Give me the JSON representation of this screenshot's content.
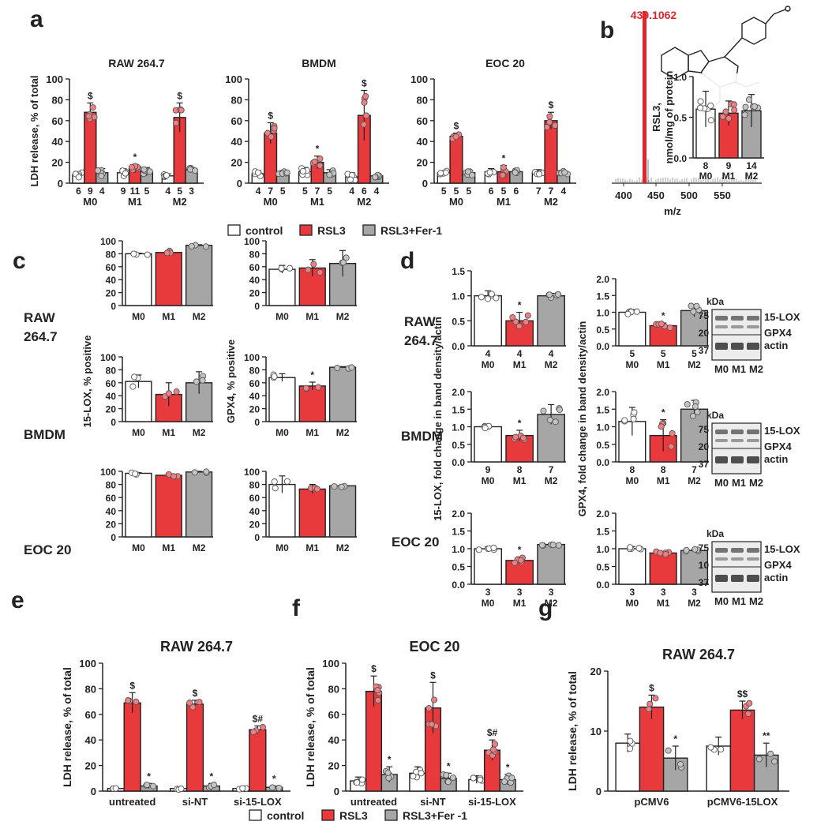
{
  "colors": {
    "control": "#ffffff",
    "rsl3": "#e8393d",
    "fer1": "#a6a6a6",
    "dot_rsl3": "#ef7f82",
    "peak": "#e0262b"
  },
  "panel_letters": {
    "a": "a",
    "b": "b",
    "c": "c",
    "d": "d",
    "e": "e",
    "f": "f",
    "g": "g"
  },
  "legend_top": {
    "control": "control",
    "rsl3": "RSL3",
    "fer1": "RSL3+Fer-1"
  },
  "legend_bottom": {
    "control": "control",
    "rsl3": "RSL3",
    "fer1": "RSL3+Fer -1"
  },
  "row_labels": {
    "raw": "RAW",
    "raw_num": "264.7",
    "bmdm": "BMDM",
    "eoc": "EOC 20"
  },
  "kda": "kDa",
  "blot_labels": {
    "lox": "15-LOX",
    "gpx": "GPX4",
    "actin": "actin"
  },
  "blot_lanes": [
    "M0",
    "M1",
    "M2"
  ],
  "blot_markers": [
    [
      "75",
      "20",
      "37"
    ],
    [
      "75",
      "20",
      "37"
    ],
    [
      "75",
      "10",
      "37"
    ]
  ],
  "chart_data": [
    {
      "id": "a1",
      "type": "bar",
      "title": "RAW 264.7",
      "ylabel": "LDH release, % of total",
      "ylim": [
        0,
        100
      ],
      "yticks": [
        "0",
        "20",
        "40",
        "60",
        "80",
        "100"
      ],
      "groups": [
        "M0",
        "M1",
        "M2"
      ],
      "series": [
        "control",
        "RSL3",
        "RSL3+Fer-1"
      ],
      "values": [
        [
          8,
          68,
          10
        ],
        [
          10,
          14,
          11
        ],
        [
          7,
          63,
          13
        ]
      ],
      "errors": [
        [
          3,
          9,
          4
        ],
        [
          4,
          4,
          4
        ],
        [
          2,
          14,
          2
        ]
      ],
      "ns": [
        [
          "6",
          "9",
          "4"
        ],
        [
          "9",
          "11",
          "5"
        ],
        [
          "4",
          "5",
          "3"
        ]
      ],
      "marks": [
        [
          "",
          "$",
          ""
        ],
        [
          "",
          "*",
          ""
        ],
        [
          "",
          "$",
          ""
        ]
      ]
    },
    {
      "id": "a2",
      "type": "bar",
      "title": "BMDM",
      "ylim": [
        0,
        100
      ],
      "yticks": [
        "0",
        "20",
        "40",
        "60",
        "80",
        "100"
      ],
      "groups": [
        "M0",
        "M1",
        "M2"
      ],
      "values": [
        [
          9,
          48,
          9
        ],
        [
          11,
          20,
          10
        ],
        [
          6,
          65,
          7
        ]
      ],
      "errors": [
        [
          3,
          10,
          3
        ],
        [
          4,
          6,
          3
        ],
        [
          4,
          24,
          1
        ]
      ],
      "ns": [
        [
          "4",
          "7",
          "5"
        ],
        [
          "5",
          "7",
          "5"
        ],
        [
          "4",
          "6",
          "4"
        ]
      ],
      "marks": [
        [
          "",
          "$",
          ""
        ],
        [
          "",
          "*",
          ""
        ],
        [
          "",
          "$",
          ""
        ]
      ]
    },
    {
      "id": "a3",
      "type": "bar",
      "title": "EOC 20",
      "ylim": [
        0,
        100
      ],
      "yticks": [
        "0",
        "20",
        "40",
        "60",
        "80",
        "100"
      ],
      "groups": [
        "M0",
        "M1",
        "M2"
      ],
      "values": [
        [
          10,
          45,
          10
        ],
        [
          11,
          11,
          11
        ],
        [
          10,
          60,
          10
        ]
      ],
      "errors": [
        [
          2,
          3,
          3
        ],
        [
          3,
          6,
          3
        ],
        [
          3,
          8,
          2
        ]
      ],
      "ns": [
        [
          "5",
          "5",
          "5"
        ],
        [
          "6",
          "5",
          "6"
        ],
        [
          "7",
          "7",
          "4"
        ]
      ],
      "marks": [
        [
          "",
          "$",
          ""
        ],
        [
          "",
          "*",
          ""
        ],
        [
          "",
          "$",
          ""
        ]
      ]
    },
    {
      "id": "b",
      "type": "bar",
      "title": "RSL3, nmol/mg of protein",
      "xlabel": "m/z",
      "peak_label": "439.1062",
      "xticks": [
        "400",
        "450",
        "500",
        "550"
      ],
      "ylim": [
        0,
        1.0
      ],
      "yticks": [
        "0.0",
        "0.5",
        "1.0"
      ],
      "categories": [
        "M0",
        "M1",
        "M2"
      ],
      "values": [
        0.6,
        0.55,
        0.58
      ],
      "errors": [
        0.22,
        0.15,
        0.2
      ],
      "ns": [
        "8",
        "9",
        "14"
      ]
    },
    {
      "id": "c1",
      "type": "bar",
      "ylabel": "15-LOX, % positive",
      "ylim": [
        0,
        100
      ],
      "yticks": [
        "0",
        "20",
        "40",
        "60",
        "80",
        "100"
      ],
      "panels": [
        {
          "row": "RAW 264.7",
          "categories": [
            "M0",
            "M1",
            "M2"
          ],
          "values": [
            80,
            82,
            93
          ],
          "errors": [
            1,
            3,
            1
          ],
          "marks": [
            "",
            "",
            ""
          ]
        },
        {
          "row": "BMDM",
          "categories": [
            "M0",
            "M1",
            "M2"
          ],
          "values": [
            62,
            42,
            60
          ],
          "errors": [
            10,
            18,
            17
          ],
          "marks": [
            "",
            "",
            ""
          ]
        },
        {
          "row": "EOC 20",
          "categories": [
            "M0",
            "M1",
            "M2"
          ],
          "values": [
            97,
            94,
            99
          ],
          "errors": [
            1,
            3,
            1
          ],
          "marks": [
            "",
            "",
            ""
          ]
        }
      ]
    },
    {
      "id": "c2",
      "type": "bar",
      "ylabel": "GPX4, % positive",
      "ylim": [
        0,
        100
      ],
      "yticks": [
        "0",
        "20",
        "40",
        "60",
        "80",
        "100"
      ],
      "panels": [
        {
          "row": "RAW 264.7",
          "categories": [
            "M0",
            "M1",
            "M2"
          ],
          "values": [
            56,
            58,
            65
          ],
          "errors": [
            6,
            13,
            20
          ],
          "marks": [
            "",
            "",
            ""
          ]
        },
        {
          "row": "BMDM",
          "categories": [
            "M0",
            "M1",
            "M2"
          ],
          "values": [
            68,
            55,
            84
          ],
          "errors": [
            6,
            6,
            1
          ],
          "marks": [
            "",
            "*",
            ""
          ]
        },
        {
          "row": "EOC 20",
          "categories": [
            "M0",
            "M1",
            "M2"
          ],
          "values": [
            80,
            73,
            78
          ],
          "errors": [
            13,
            7,
            2
          ],
          "marks": [
            "",
            "",
            ""
          ]
        }
      ]
    },
    {
      "id": "d1",
      "type": "bar",
      "ylabel": "15-LOX, fold change in band density/actin",
      "panels": [
        {
          "row": "RAW 264.7",
          "ylim": [
            0,
            1.5
          ],
          "yticks": [
            "0.0",
            "0.5",
            "1.0",
            "1.5"
          ],
          "categories": [
            "M0",
            "M1",
            "M2"
          ],
          "values": [
            1.0,
            0.5,
            1.0
          ],
          "errors": [
            0.1,
            0.17,
            0.05
          ],
          "ns": [
            "4",
            "4",
            "4"
          ],
          "marks": [
            "",
            "*",
            ""
          ]
        },
        {
          "row": "BMDM",
          "ylim": [
            0,
            2.0
          ],
          "yticks": [
            "0.0",
            "0.5",
            "1.0",
            "1.5",
            "2.0"
          ],
          "categories": [
            "M0",
            "M1",
            "M2"
          ],
          "values": [
            1.0,
            0.75,
            1.35
          ],
          "errors": [
            0.07,
            0.15,
            0.28
          ],
          "ns": [
            "9",
            "8",
            "7"
          ],
          "marks": [
            "",
            "*",
            ""
          ]
        },
        {
          "row": "EOC 20",
          "ylim": [
            0,
            2.0
          ],
          "yticks": [
            "0.0",
            "0.5",
            "1.0",
            "1.5",
            "2.0"
          ],
          "categories": [
            "M0",
            "M1",
            "M2"
          ],
          "values": [
            1.0,
            0.67,
            1.12
          ],
          "errors": [
            0.05,
            0.1,
            0.03
          ],
          "ns": [
            "3",
            "3",
            "3"
          ],
          "marks": [
            "",
            "*",
            ""
          ]
        }
      ]
    },
    {
      "id": "d2",
      "type": "bar",
      "ylabel": "GPX4, fold change in band density/actin",
      "panels": [
        {
          "row": "RAW 264.7",
          "ylim": [
            0,
            2.0
          ],
          "yticks": [
            "0.0",
            "0.5",
            "1.0",
            "1.5",
            "2.0"
          ],
          "categories": [
            "M0",
            "M1",
            "M2"
          ],
          "values": [
            1.0,
            0.6,
            1.05
          ],
          "errors": [
            0.08,
            0.08,
            0.18
          ],
          "ns": [
            "5",
            "5",
            "5"
          ],
          "marks": [
            "",
            "*",
            ""
          ]
        },
        {
          "row": "BMDM",
          "ylim": [
            0,
            2.0
          ],
          "yticks": [
            "0.0",
            "0.5",
            "1.0",
            "1.5",
            "2.0"
          ],
          "categories": [
            "M0",
            "M1",
            "M2"
          ],
          "values": [
            1.15,
            0.75,
            1.5
          ],
          "errors": [
            0.4,
            0.45,
            0.25
          ],
          "ns": [
            "8",
            "8",
            "7"
          ],
          "marks": [
            "",
            "*",
            ""
          ]
        },
        {
          "row": "EOC 20",
          "ylim": [
            0,
            2.0
          ],
          "yticks": [
            "0.0",
            "0.5",
            "1.0",
            "1.5",
            "2.0"
          ],
          "categories": [
            "M0",
            "M1",
            "M2"
          ],
          "values": [
            1.0,
            0.88,
            0.95
          ],
          "errors": [
            0.06,
            0.05,
            0.02
          ],
          "ns": [
            "3",
            "3",
            "3"
          ],
          "marks": [
            "",
            "",
            ""
          ]
        }
      ]
    },
    {
      "id": "e",
      "type": "bar",
      "title": "RAW 264.7",
      "ylabel": "LDH release, % of total",
      "ylim": [
        0,
        100
      ],
      "yticks": [
        "0",
        "20",
        "40",
        "60",
        "80",
        "100"
      ],
      "groups": [
        "untreated",
        "si-NT",
        "si-15-LOX"
      ],
      "values": [
        [
          2,
          69,
          4
        ],
        [
          2,
          68,
          4
        ],
        [
          2,
          48,
          3
        ]
      ],
      "errors": [
        [
          1,
          8,
          2
        ],
        [
          1,
          3,
          2
        ],
        [
          1,
          3,
          1
        ]
      ],
      "marks": [
        [
          "",
          "$",
          "*"
        ],
        [
          "",
          "$",
          "*"
        ],
        [
          "",
          "$#",
          "*"
        ]
      ]
    },
    {
      "id": "f",
      "type": "bar",
      "title": "EOC 20",
      "ylabel": "LDH release, % of total",
      "ylim": [
        0,
        100
      ],
      "yticks": [
        "0",
        "20",
        "40",
        "60",
        "80",
        "100"
      ],
      "groups": [
        "untreated",
        "si-NT",
        "si-15-LOX"
      ],
      "values": [
        [
          8,
          78,
          13
        ],
        [
          14,
          65,
          10
        ],
        [
          9,
          32,
          9
        ]
      ],
      "errors": [
        [
          3,
          12,
          6
        ],
        [
          5,
          20,
          4
        ],
        [
          3,
          8,
          4
        ]
      ],
      "marks": [
        [
          "",
          "$",
          "*"
        ],
        [
          "",
          "$",
          "*"
        ],
        [
          "",
          "$#",
          "*"
        ]
      ]
    },
    {
      "id": "g",
      "type": "bar",
      "title": "RAW 264.7",
      "ylabel": "LDH release, % of total",
      "ylim": [
        0,
        20
      ],
      "yticks": [
        "0",
        "10",
        "20"
      ],
      "groups": [
        "pCMV6",
        "pCMV6-15LOX"
      ],
      "values": [
        [
          8,
          14,
          5.5
        ],
        [
          7.5,
          13.5,
          6
        ]
      ],
      "errors": [
        [
          1.5,
          2,
          2
        ],
        [
          1.5,
          1.5,
          2
        ]
      ],
      "marks": [
        [
          "",
          "$",
          "*"
        ],
        [
          "",
          "$$",
          "**"
        ]
      ]
    }
  ]
}
